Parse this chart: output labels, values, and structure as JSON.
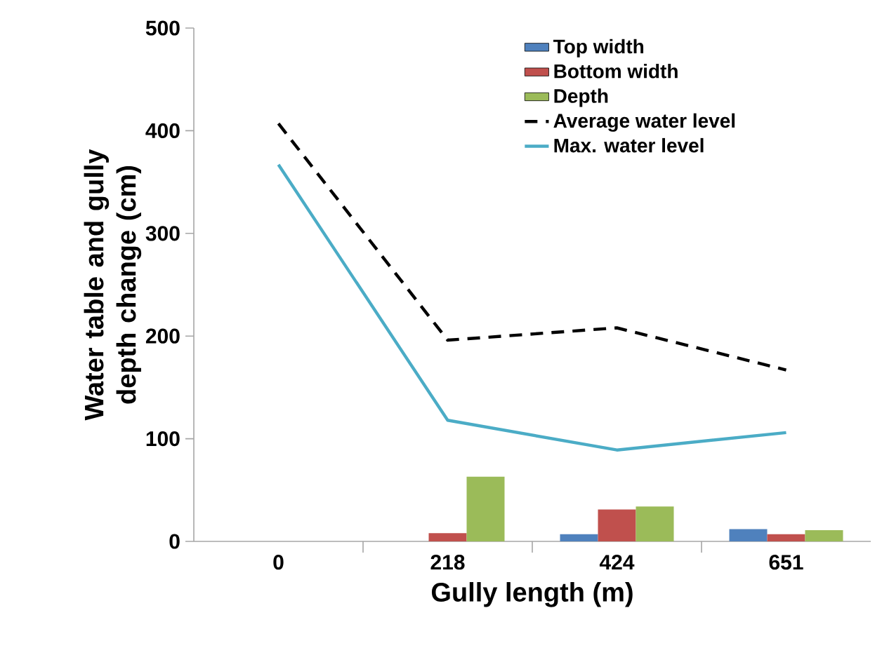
{
  "chart_data": {
    "type": "bar",
    "xlabel": "Gully length (m)",
    "ylabel": "Water table and gully depth change (cm)",
    "categories": [
      "0",
      "218",
      "424",
      "651"
    ],
    "ylim": [
      0,
      500
    ],
    "yticks": [
      0,
      100,
      200,
      300,
      400,
      500
    ],
    "legend": "top right",
    "grid": false,
    "series": [
      {
        "name": "Top width",
        "color": "#4f81bd",
        "values": [
          null,
          null,
          7,
          12
        ]
      },
      {
        "name": "Bottom width",
        "color": "#c0504d",
        "values": [
          null,
          8,
          31,
          7
        ]
      },
      {
        "name": "Depth",
        "color": "#9bbb59",
        "values": [
          null,
          63,
          34,
          11
        ]
      },
      {
        "name": "Average water level",
        "type": "line",
        "line_style": "dashed",
        "color": "#000000",
        "values": [
          407,
          196,
          208,
          167
        ]
      },
      {
        "name": "Max. water level",
        "type": "line",
        "line_style": "solid",
        "color": "#4bacc6",
        "values": [
          367,
          118,
          89,
          106
        ]
      }
    ]
  }
}
